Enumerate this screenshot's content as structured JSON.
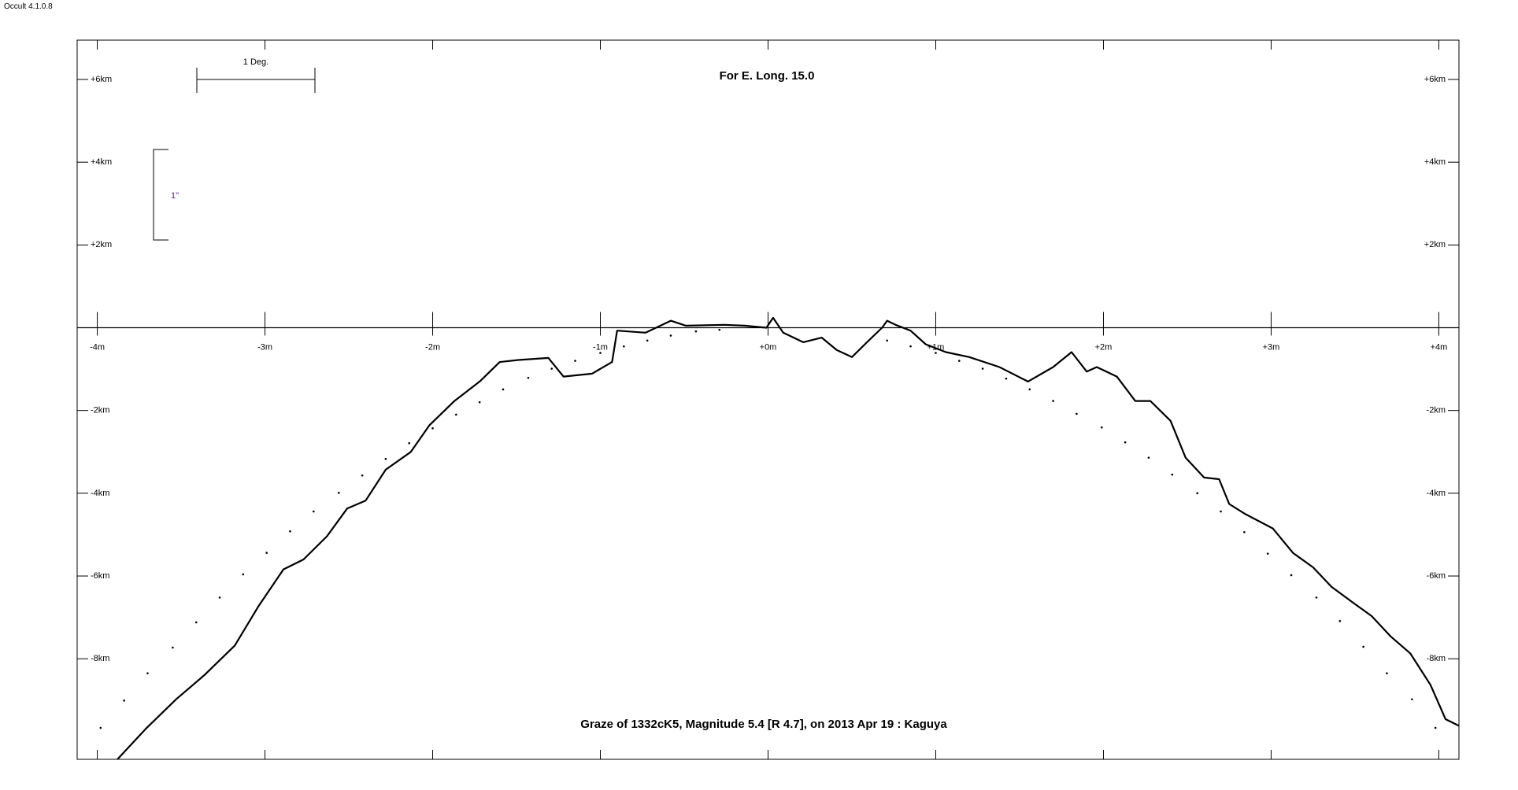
{
  "app_version": "Occult 4.1.0.8",
  "chart_data": {
    "type": "line",
    "title": "For E. Long. 15.0",
    "subtitle": "Graze of  1332cK5,  Magnitude 5.4 [R 4.7],  on 2013 Apr 19  :  Kaguya",
    "annotations": [
      "1 Deg.",
      "1\""
    ],
    "xlim": [
      -4.12,
      4.12
    ],
    "ylim": [
      -10.43,
      6.95
    ],
    "xticks": [
      {
        "value": -4,
        "label": "-4m"
      },
      {
        "value": -3,
        "label": "-3m"
      },
      {
        "value": -2,
        "label": "-2m"
      },
      {
        "value": -1,
        "label": "-1m"
      },
      {
        "value": 0,
        "label": "+0m"
      },
      {
        "value": 1,
        "label": "+1m"
      },
      {
        "value": 2,
        "label": "+2m"
      },
      {
        "value": 3,
        "label": "+3m"
      },
      {
        "value": 4,
        "label": "+4m"
      }
    ],
    "yticks": [
      {
        "value": 6,
        "label": "+6km"
      },
      {
        "value": 4,
        "label": "+4km"
      },
      {
        "value": 2,
        "label": "+2km"
      },
      {
        "value": -2,
        "label": "-2km"
      },
      {
        "value": -4,
        "label": "-4km"
      },
      {
        "value": -6,
        "label": "-6km"
      },
      {
        "value": -8,
        "label": "-8km"
      }
    ],
    "series": [
      {
        "type": "line",
        "color": "#000000",
        "x": [
          -3.88,
          -3.71,
          -3.53,
          -3.36,
          -3.18,
          -3.04,
          -2.89,
          -2.77,
          -2.63,
          -2.51,
          -2.4,
          -2.28,
          -2.13,
          -2.02,
          -1.87,
          -1.72,
          -1.6,
          -1.49,
          -1.31,
          -1.22,
          -1.05,
          -0.93,
          -0.9,
          -0.73,
          -0.58,
          -0.49,
          -0.26,
          -0.14,
          -0.01,
          0.03,
          0.09,
          0.21,
          0.32,
          0.41,
          0.5,
          0.59,
          0.68,
          0.71,
          0.76,
          0.85,
          0.94,
          1.06,
          1.2,
          1.38,
          1.55,
          1.7,
          1.81,
          1.9,
          1.96,
          2.08,
          2.19,
          2.28,
          2.4,
          2.49,
          2.6,
          2.69,
          2.75,
          2.84,
          3.01,
          3.13,
          3.25,
          3.36,
          3.48,
          3.6,
          3.71,
          3.83,
          3.95,
          4.04,
          4.12
        ],
        "values": [
          -10.43,
          -9.69,
          -8.98,
          -8.39,
          -7.68,
          -6.74,
          -5.84,
          -5.6,
          -5.04,
          -4.37,
          -4.18,
          -3.43,
          -3.0,
          -2.36,
          -1.77,
          -1.3,
          -0.83,
          -0.78,
          -0.73,
          -1.18,
          -1.11,
          -0.83,
          -0.07,
          -0.12,
          0.17,
          0.05,
          0.07,
          0.05,
          0,
          0.24,
          -0.12,
          -0.35,
          -0.24,
          -0.54,
          -0.71,
          -0.35,
          0,
          0.17,
          0.07,
          -0.07,
          -0.4,
          -0.59,
          -0.71,
          -0.95,
          -1.3,
          -0.95,
          -0.59,
          -1.06,
          -0.95,
          -1.18,
          -1.77,
          -1.77,
          -2.25,
          -3.14,
          -3.62,
          -3.66,
          -4.26,
          -4.49,
          -4.85,
          -5.44,
          -5.79,
          -6.26,
          -6.62,
          -6.97,
          -7.45,
          -7.87,
          -8.63,
          -9.46,
          -9.62
        ]
      },
      {
        "type": "scatter",
        "color": "#000000",
        "x": [
          -3.98,
          -3.84,
          -3.7,
          -3.55,
          -3.41,
          -3.27,
          -3.13,
          -2.99,
          -2.85,
          -2.71,
          -2.56,
          -2.42,
          -2.28,
          -2.14,
          -2.0,
          -1.86,
          -1.72,
          -1.58,
          -1.43,
          -1.29,
          -1.15,
          -1.0,
          -0.86,
          -0.72,
          -0.58,
          -0.43,
          -0.29,
          0.71,
          0.85,
          1.0,
          1.14,
          1.28,
          1.42,
          1.56,
          1.7,
          1.84,
          1.99,
          2.13,
          2.27,
          2.41,
          2.56,
          2.7,
          2.84,
          2.98,
          3.12,
          3.27,
          3.41,
          3.55,
          3.69,
          3.84,
          3.98
        ],
        "values": [
          -9.67,
          -9.01,
          -8.35,
          -7.73,
          -7.12,
          -6.52,
          -5.96,
          -5.44,
          -4.92,
          -4.44,
          -3.99,
          -3.57,
          -3.17,
          -2.79,
          -2.43,
          -2.1,
          -1.8,
          -1.49,
          -1.21,
          -0.99,
          -0.8,
          -0.61,
          -0.45,
          -0.31,
          -0.19,
          -0.09,
          -0.05,
          -0.31,
          -0.45,
          -0.61,
          -0.8,
          -0.99,
          -1.23,
          -1.49,
          -1.77,
          -2.08,
          -2.41,
          -2.77,
          -3.14,
          -3.55,
          -4.0,
          -4.44,
          -4.94,
          -5.46,
          -5.98,
          -6.52,
          -7.09,
          -7.71,
          -8.35,
          -8.98,
          -9.67
        ]
      }
    ]
  }
}
